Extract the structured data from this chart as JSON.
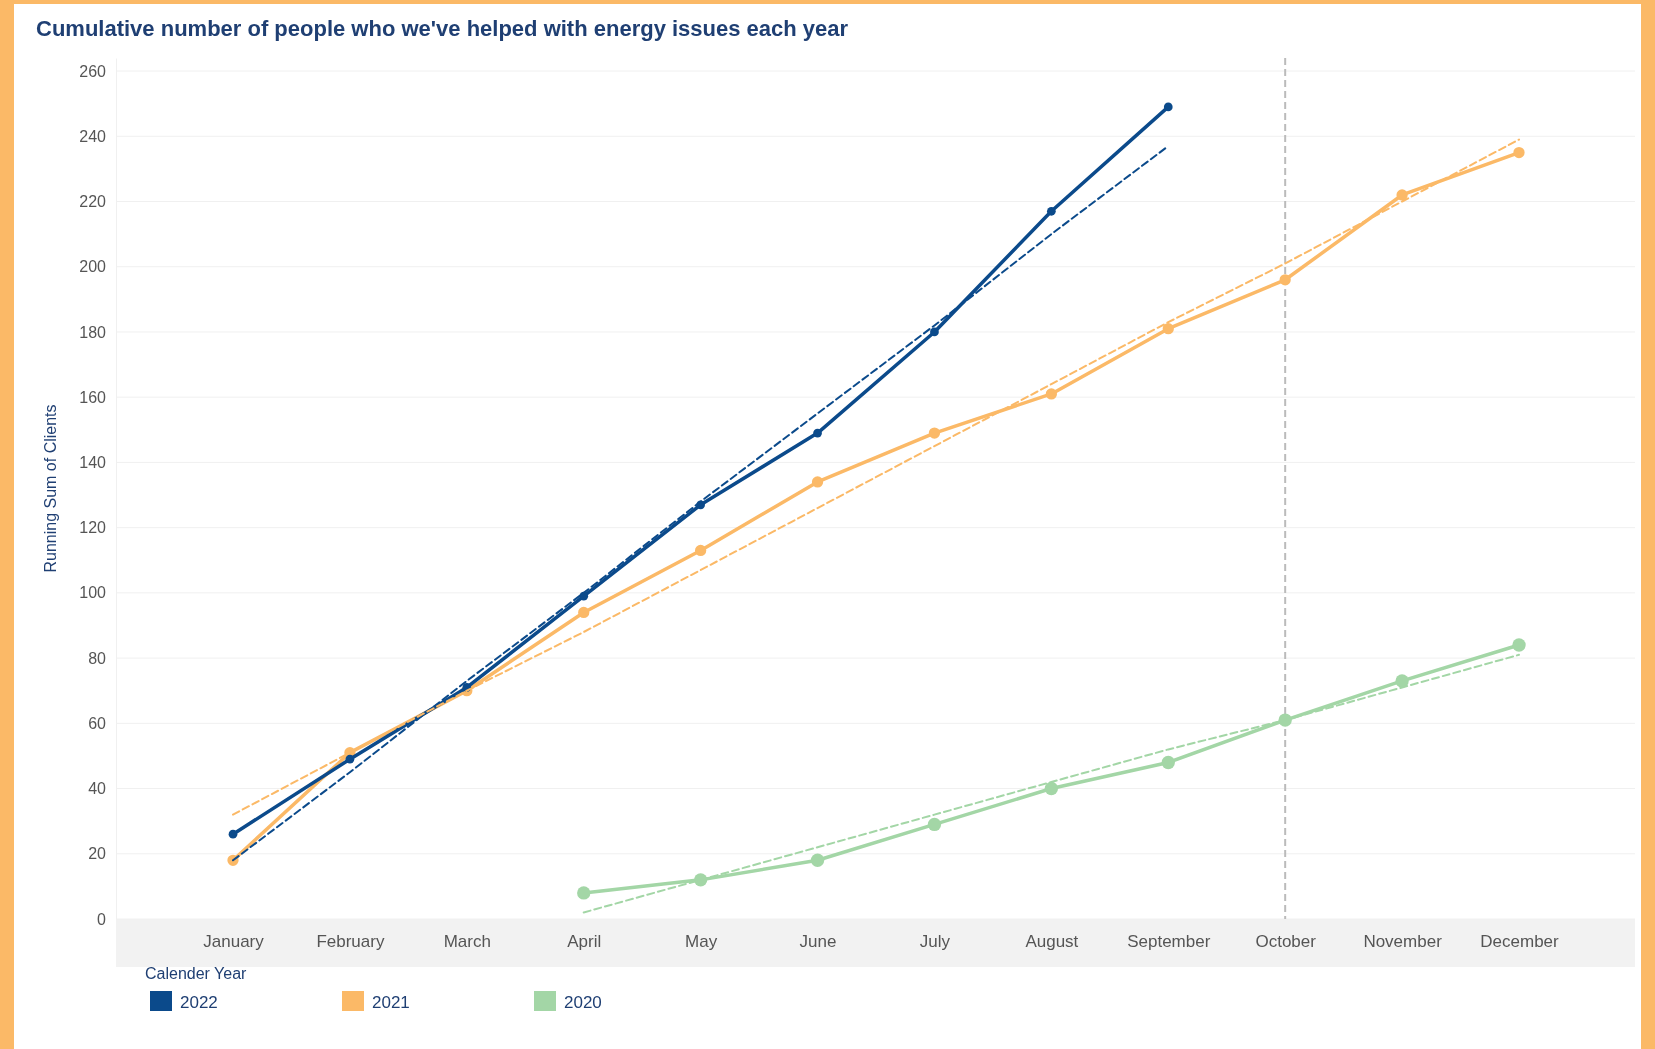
{
  "chart_data": {
    "type": "line",
    "title": "Cumulative number of people who we've helped with energy issues each year",
    "ylabel": "Running Sum of Clients",
    "legend_title": "Calender Year",
    "categories": [
      "January",
      "February",
      "March",
      "April",
      "May",
      "June",
      "July",
      "August",
      "September",
      "October",
      "November",
      "December"
    ],
    "ylim": [
      0,
      264
    ],
    "yticks": [
      0,
      20,
      40,
      60,
      80,
      100,
      120,
      140,
      160,
      180,
      200,
      220,
      240,
      260
    ],
    "grid": "y",
    "legend": "bottom left",
    "marker": "circle",
    "line_style": "solid",
    "ref_lines": [
      {
        "axis": "x",
        "value": "October",
        "color": "#bbbbbb",
        "line_style": "dashed"
      }
    ],
    "series": [
      {
        "name": "2022",
        "color": "#0b4a8b",
        "values": [
          26,
          49,
          71,
          99,
          127,
          149,
          180,
          217,
          249,
          null,
          null,
          null
        ]
      },
      {
        "name": "2021",
        "color": "#fbb967",
        "values": [
          18,
          51,
          70,
          94,
          113,
          134,
          149,
          161,
          181,
          196,
          222,
          235
        ]
      },
      {
        "name": "2020",
        "color": "#a3d6a6",
        "values": [
          null,
          null,
          null,
          8,
          12,
          18,
          29,
          40,
          48,
          61,
          73,
          84
        ]
      },
      {
        "color": "#0b4a8b",
        "line_style": "dashed",
        "marker": "none",
        "values": [
          18,
          45,
          73,
          100,
          128,
          155,
          182,
          210,
          237,
          null,
          null,
          null
        ]
      },
      {
        "color": "#fbb967",
        "line_style": "dashed",
        "marker": "none",
        "values": [
          32,
          51,
          70,
          88,
          107,
          126,
          145,
          164,
          183,
          201,
          220,
          239
        ]
      },
      {
        "color": "#a3d6a6",
        "line_style": "dashed",
        "marker": "none",
        "values": [
          null,
          null,
          null,
          2,
          12,
          22,
          32,
          42,
          52,
          61,
          71,
          81
        ]
      }
    ]
  }
}
